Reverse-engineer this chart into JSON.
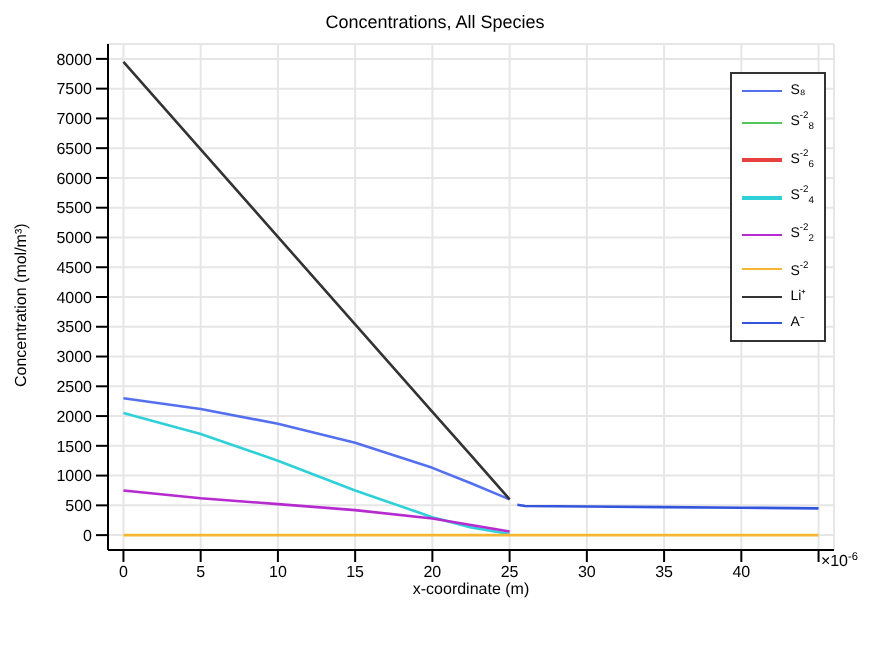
{
  "chart_data": {
    "type": "line",
    "title": "Concentrations, All Species",
    "xlabel": "x-coordinate (m)",
    "ylabel": "Concentration (mol/m³)",
    "annotations": [
      "×10$^{-6}$"
    ],
    "x": [
      0,
      5,
      10,
      15,
      20,
      22.5,
      25,
      25.5,
      26,
      30,
      35,
      40,
      45
    ],
    "series": [
      {
        "name": "S₈",
        "color": "#5470ee",
        "values": [
          2300,
          2120,
          1870,
          1550,
          1130,
          870,
          600,
          null,
          null,
          null,
          null,
          null,
          null
        ]
      },
      {
        "name": "S$^{-2}$$_{8}$",
        "color": "#55c85a",
        "values": [
          null,
          null,
          null,
          null,
          null,
          null,
          null,
          null,
          null,
          null,
          null,
          null,
          null
        ]
      },
      {
        "name": "S$^{-2}$$_{6}$",
        "color": "#e8403a",
        "values": [
          null,
          null,
          null,
          null,
          null,
          null,
          null,
          null,
          null,
          null,
          null,
          null,
          null
        ]
      },
      {
        "name": "S$^{-2}$$_{4}$",
        "color": "#2fd0d8",
        "values": [
          2050,
          1700,
          1250,
          750,
          300,
          130,
          20,
          null,
          null,
          null,
          null,
          null,
          null
        ]
      },
      {
        "name": "S$^{-2}$$_{2}$",
        "color": "#b62ad0",
        "values": [
          750,
          620,
          520,
          420,
          280,
          170,
          60,
          null,
          null,
          null,
          null,
          null,
          null
        ]
      },
      {
        "name": "S$^{-2}$",
        "color": "#f5b731",
        "values": [
          0,
          0,
          0,
          0,
          0,
          0,
          0,
          0,
          0,
          0,
          0,
          0,
          0
        ]
      },
      {
        "name": "Li⁺",
        "color": "#333333",
        "values": [
          7950,
          6480,
          5010,
          3540,
          2070,
          1340,
          600,
          null,
          null,
          null,
          null,
          null,
          null
        ]
      },
      {
        "name": "A⁻",
        "color": "#3355dd",
        "values": [
          null,
          null,
          null,
          null,
          null,
          null,
          null,
          510,
          490,
          480,
          470,
          460,
          450
        ]
      }
    ],
    "xlim": [
      -1,
      46
    ],
    "xticks": [
      0,
      5,
      10,
      15,
      20,
      25,
      30,
      35,
      40,
      {
        "value": 45,
        "label": null
      }
    ],
    "ylim": [
      -250,
      8250
    ],
    "yticks": [
      0,
      500,
      1000,
      1500,
      2000,
      2500,
      3000,
      3500,
      4000,
      4500,
      5000,
      5500,
      6000,
      6500,
      7000,
      7500,
      8000
    ],
    "grid": true,
    "legend": "top right"
  }
}
